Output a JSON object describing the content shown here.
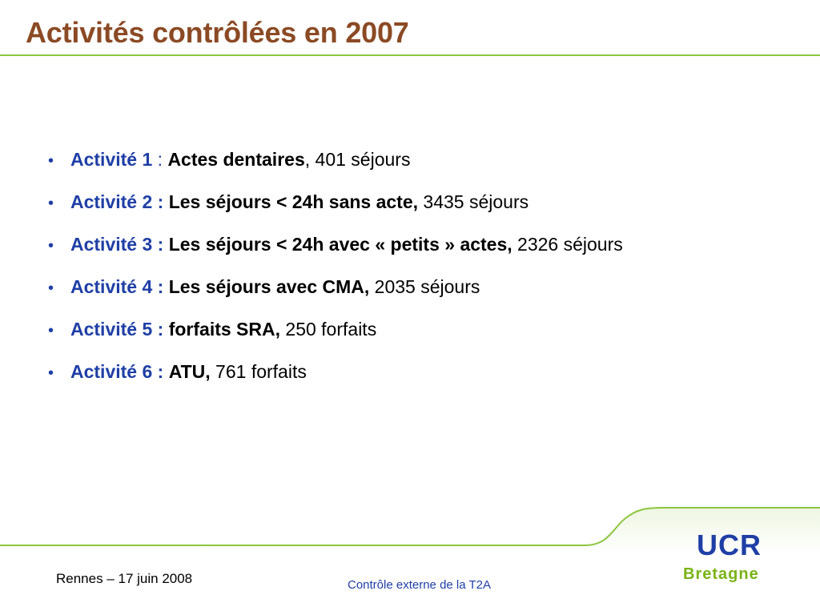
{
  "slide": {
    "title": "Activités contrôlées en 2007"
  },
  "activities": [
    {
      "label": "Activité 1",
      "separator": " : ",
      "name": "Actes dentaires",
      "value": ", 401 séjours"
    },
    {
      "label": "Activité 2 :",
      "separator": " ",
      "name": "Les séjours < 24h sans acte,",
      "value": " 3435 séjours"
    },
    {
      "label": "Activité 3 :",
      "separator": " ",
      "name": "Les séjours < 24h avec « petits » actes,",
      "value": " 2326 séjours"
    },
    {
      "label": "Activité 4 :",
      "separator": " ",
      "name": "Les séjours avec CMA,",
      "value": " 2035 séjours"
    },
    {
      "label": "Activité 5 :",
      "separator": " ",
      "name": "forfaits SRA,",
      "value": " 250 forfaits"
    },
    {
      "label": "Activité 6 :",
      "separator": " ",
      "name": "ATU,",
      "value": " 761 forfaits"
    }
  ],
  "footer": {
    "left": "Rennes – 17 juin 2008",
    "center": "Contrôle externe de la T2A",
    "logo_main": "UCR",
    "logo_region": "Bretagne"
  },
  "colors": {
    "title": "#8b4a24",
    "accent_blue": "#1f3fa6",
    "rule_green": "#8cc63f",
    "logo_green": "#7ab317"
  },
  "bullet_glyph": "•"
}
